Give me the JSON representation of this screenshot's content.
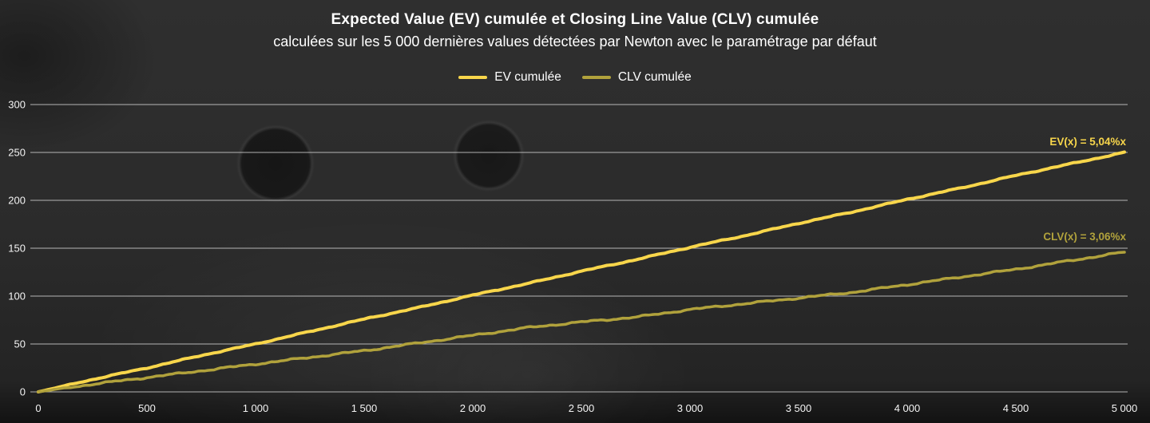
{
  "title": "Expected Value (EV) cumulée et Closing Line Value (CLV) cumulée",
  "subtitle": "calculées sur les 5 000 dernières values détectées par Newton avec le paramétrage par défaut",
  "legend": [
    {
      "label": "EV cumulée",
      "color": "#F8D64B"
    },
    {
      "label": "CLV cumulée",
      "color": "#B1A23C"
    }
  ],
  "annotations": {
    "ev": "EV(x) = 5,04%x",
    "clv": "CLV(x) = 3,06%x"
  },
  "colors": {
    "background": "#2b2b2b",
    "grid": "#d9d9d9",
    "text": "#ffffff",
    "ev_line": "#F8D64B",
    "clv_line": "#B1A23C"
  },
  "chart_data": {
    "type": "line",
    "title": "Expected Value (EV) cumulée et Closing Line Value (CLV) cumulée",
    "subtitle": "calculées sur les 5 000 dernières values détectées par Newton avec le paramétrage par défaut",
    "xlabel": "",
    "ylabel": "",
    "xlim": [
      0,
      5000
    ],
    "ylim": [
      0,
      300
    ],
    "grid": true,
    "legend_position": "top",
    "x": [
      0,
      250,
      500,
      750,
      1000,
      1250,
      1500,
      1750,
      2000,
      2250,
      2500,
      2750,
      3000,
      3250,
      3500,
      3750,
      4000,
      4250,
      4500,
      4750,
      5000
    ],
    "series": [
      {
        "name": "EV cumulée",
        "color": "#F8D64B",
        "values": [
          0,
          13,
          25,
          38,
          50,
          63,
          76,
          88,
          101,
          113,
          126,
          138,
          151,
          163,
          176,
          188,
          201,
          213,
          226,
          238,
          250
        ]
      },
      {
        "name": "CLV cumulée",
        "color": "#B1A23C",
        "values": [
          0,
          8,
          15,
          22,
          29,
          36,
          43,
          51,
          59,
          67,
          73,
          78,
          86,
          92,
          98,
          104,
          112,
          120,
          128,
          137,
          146
        ]
      }
    ],
    "yticks": [
      0,
      50,
      100,
      150,
      200,
      250,
      300
    ],
    "xtick_values": [
      0,
      500,
      1000,
      1500,
      2000,
      2500,
      3000,
      3500,
      4000,
      4500,
      5000
    ],
    "xtick_labels": [
      "0",
      "500",
      "1 000",
      "1 500",
      "2 000",
      "2 500",
      "3 000",
      "3 500",
      "4 000",
      "4 500",
      "5 000"
    ]
  }
}
